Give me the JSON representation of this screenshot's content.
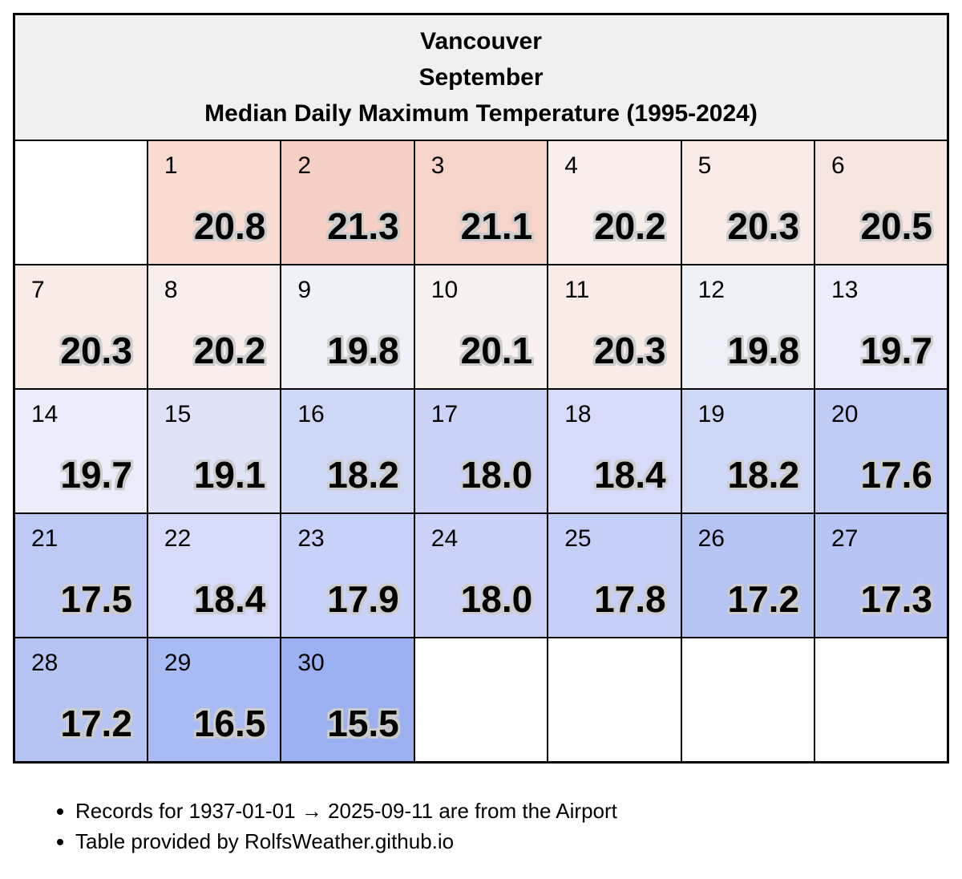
{
  "title": {
    "line1": "Vancouver",
    "line2": "September",
    "line3": "Median Daily Maximum Temperature (1995-2024)"
  },
  "colors": {
    "page_bg": "#ffffff",
    "header_bg": "#f0f0f0",
    "grid_border": "#000000",
    "text": "#000000",
    "value_halo": "#cccccc",
    "warm_extreme": "#f6d0c5",
    "cool_extreme": "#9bb1f1"
  },
  "chart_data": {
    "type": "heatmap",
    "title": "Vancouver September Median Daily Maximum Temperature (1995-2024)",
    "location": "Vancouver",
    "month": "September",
    "metric": "Median Daily Maximum Temperature",
    "period": "1995-2024",
    "unit": "degrees C",
    "value_range": [
      15.5,
      21.3
    ],
    "weeks": [
      [
        null,
        1,
        2,
        3,
        4,
        5,
        6
      ],
      [
        7,
        8,
        9,
        10,
        11,
        12,
        13
      ],
      [
        14,
        15,
        16,
        17,
        18,
        19,
        20
      ],
      [
        21,
        22,
        23,
        24,
        25,
        26,
        27
      ],
      [
        28,
        29,
        30,
        null,
        null,
        null,
        null
      ]
    ],
    "days": [
      {
        "day": 1,
        "value": 20.8,
        "color": "#f8dcd2"
      },
      {
        "day": 2,
        "value": 21.3,
        "color": "#f6d0c5"
      },
      {
        "day": 3,
        "value": 21.1,
        "color": "#f7d4ca"
      },
      {
        "day": 4,
        "value": 20.2,
        "color": "#f8efec"
      },
      {
        "day": 5,
        "value": 20.3,
        "color": "#f9ebe6"
      },
      {
        "day": 6,
        "value": 20.5,
        "color": "#f7e6df"
      },
      {
        "day": 7,
        "value": 20.3,
        "color": "#f9ebe6"
      },
      {
        "day": 8,
        "value": 20.2,
        "color": "#f8efec"
      },
      {
        "day": 9,
        "value": 19.8,
        "color": "#eff1f9"
      },
      {
        "day": 10,
        "value": 20.1,
        "color": "#f9f1ef"
      },
      {
        "day": 11,
        "value": 20.3,
        "color": "#f9ebe6"
      },
      {
        "day": 12,
        "value": 19.8,
        "color": "#eff1f9"
      },
      {
        "day": 13,
        "value": 19.7,
        "color": "#ebeefa"
      },
      {
        "day": 14,
        "value": 19.7,
        "color": "#ebeefa"
      },
      {
        "day": 15,
        "value": 19.1,
        "color": "#dee3f8"
      },
      {
        "day": 16,
        "value": 18.2,
        "color": "#cfd7f7"
      },
      {
        "day": 17,
        "value": 18.0,
        "color": "#cad3f7"
      },
      {
        "day": 18,
        "value": 18.4,
        "color": "#d5dbf8"
      },
      {
        "day": 19,
        "value": 18.2,
        "color": "#cfd7f7"
      },
      {
        "day": 20,
        "value": 17.6,
        "color": "#c0ccf6"
      },
      {
        "day": 21,
        "value": 17.5,
        "color": "#bec9f5"
      },
      {
        "day": 22,
        "value": 18.4,
        "color": "#d5dbf8"
      },
      {
        "day": 23,
        "value": 17.9,
        "color": "#c8d1f7"
      },
      {
        "day": 24,
        "value": 18.0,
        "color": "#cad3f7"
      },
      {
        "day": 25,
        "value": 17.8,
        "color": "#c6d0f6"
      },
      {
        "day": 26,
        "value": 17.2,
        "color": "#b6c4f4"
      },
      {
        "day": 27,
        "value": 17.3,
        "color": "#b8c5f4"
      },
      {
        "day": 28,
        "value": 17.2,
        "color": "#b6c4f4"
      },
      {
        "day": 29,
        "value": 16.5,
        "color": "#a9bbf3"
      },
      {
        "day": 30,
        "value": 15.5,
        "color": "#9bb1f1"
      }
    ]
  },
  "footer": {
    "bullets": [
      "Records for 1937-01-01 → 2025-09-11 are from the Airport",
      "Table provided by RolfsWeather.github.io"
    ]
  }
}
